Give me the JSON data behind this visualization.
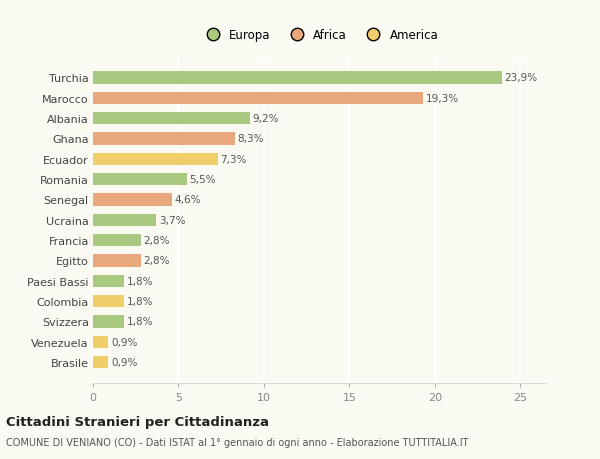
{
  "categories": [
    "Brasile",
    "Venezuela",
    "Svizzera",
    "Colombia",
    "Paesi Bassi",
    "Egitto",
    "Francia",
    "Ucraina",
    "Senegal",
    "Romania",
    "Ecuador",
    "Ghana",
    "Albania",
    "Marocco",
    "Turchia"
  ],
  "values": [
    0.9,
    0.9,
    1.8,
    1.8,
    1.8,
    2.8,
    2.8,
    3.7,
    4.6,
    5.5,
    7.3,
    8.3,
    9.2,
    19.3,
    23.9
  ],
  "bar_colors": [
    "#f0ce6a",
    "#f0ce6a",
    "#a8c97f",
    "#f0ce6a",
    "#a8c97f",
    "#e8a87c",
    "#a8c97f",
    "#a8c97f",
    "#e8a87c",
    "#a8c97f",
    "#f0ce6a",
    "#e8a87c",
    "#a8c97f",
    "#e8a87c",
    "#a8c97f"
  ],
  "labels": [
    "0,9%",
    "0,9%",
    "1,8%",
    "1,8%",
    "1,8%",
    "2,8%",
    "2,8%",
    "3,7%",
    "4,6%",
    "5,5%",
    "7,3%",
    "8,3%",
    "9,2%",
    "19,3%",
    "23,9%"
  ],
  "title": "Cittadini Stranieri per Cittadinanza",
  "subtitle": "COMUNE DI VENIANO (CO) - Dati ISTAT al 1° gennaio di ogni anno - Elaborazione TUTTITALIA.IT",
  "legend_labels": [
    "Europa",
    "Africa",
    "America"
  ],
  "legend_colors": [
    "#a8c97f",
    "#e8a87c",
    "#f0ce6a"
  ],
  "xlim": [
    0,
    26.5
  ],
  "xticks": [
    0,
    5,
    10,
    15,
    20,
    25
  ],
  "background_color": "#fafaf2",
  "grid_color": "#ffffff"
}
